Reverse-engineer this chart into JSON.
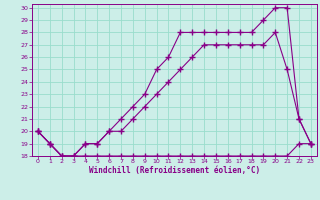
{
  "xlabel": "Windchill (Refroidissement éolien,°C)",
  "bg_color": "#cceee8",
  "grid_color": "#99ddcc",
  "line_color": "#880088",
  "xmin": 0,
  "xmax": 23,
  "ymin": 18,
  "ymax": 30,
  "line1_x": [
    0,
    1,
    2,
    3,
    4,
    5,
    6,
    7,
    8,
    9,
    10,
    11,
    12,
    13,
    14,
    15,
    16,
    17,
    18,
    19,
    20,
    21,
    22,
    23
  ],
  "line1_y": [
    20,
    19,
    18,
    18,
    18,
    18,
    18,
    18,
    18,
    18,
    18,
    18,
    18,
    18,
    18,
    18,
    18,
    18,
    18,
    18,
    18,
    18,
    19,
    19
  ],
  "line2_x": [
    0,
    1,
    2,
    3,
    4,
    5,
    6,
    7,
    8,
    9,
    10,
    11,
    12,
    13,
    14,
    15,
    16,
    17,
    18,
    19,
    20,
    21,
    22,
    23
  ],
  "line2_y": [
    20,
    19,
    18,
    18,
    19,
    19,
    20,
    20,
    21,
    22,
    23,
    24,
    25,
    26,
    27,
    27,
    27,
    27,
    27,
    27,
    28,
    25,
    21,
    19
  ],
  "line3_x": [
    0,
    1,
    2,
    3,
    4,
    5,
    6,
    7,
    8,
    9,
    10,
    11,
    12,
    13,
    14,
    15,
    16,
    17,
    18,
    19,
    20,
    21,
    22,
    23
  ],
  "line3_y": [
    20,
    19,
    18,
    18,
    19,
    19,
    20,
    21,
    22,
    23,
    25,
    26,
    28,
    28,
    28,
    28,
    28,
    28,
    28,
    29,
    30,
    30,
    21,
    19
  ]
}
